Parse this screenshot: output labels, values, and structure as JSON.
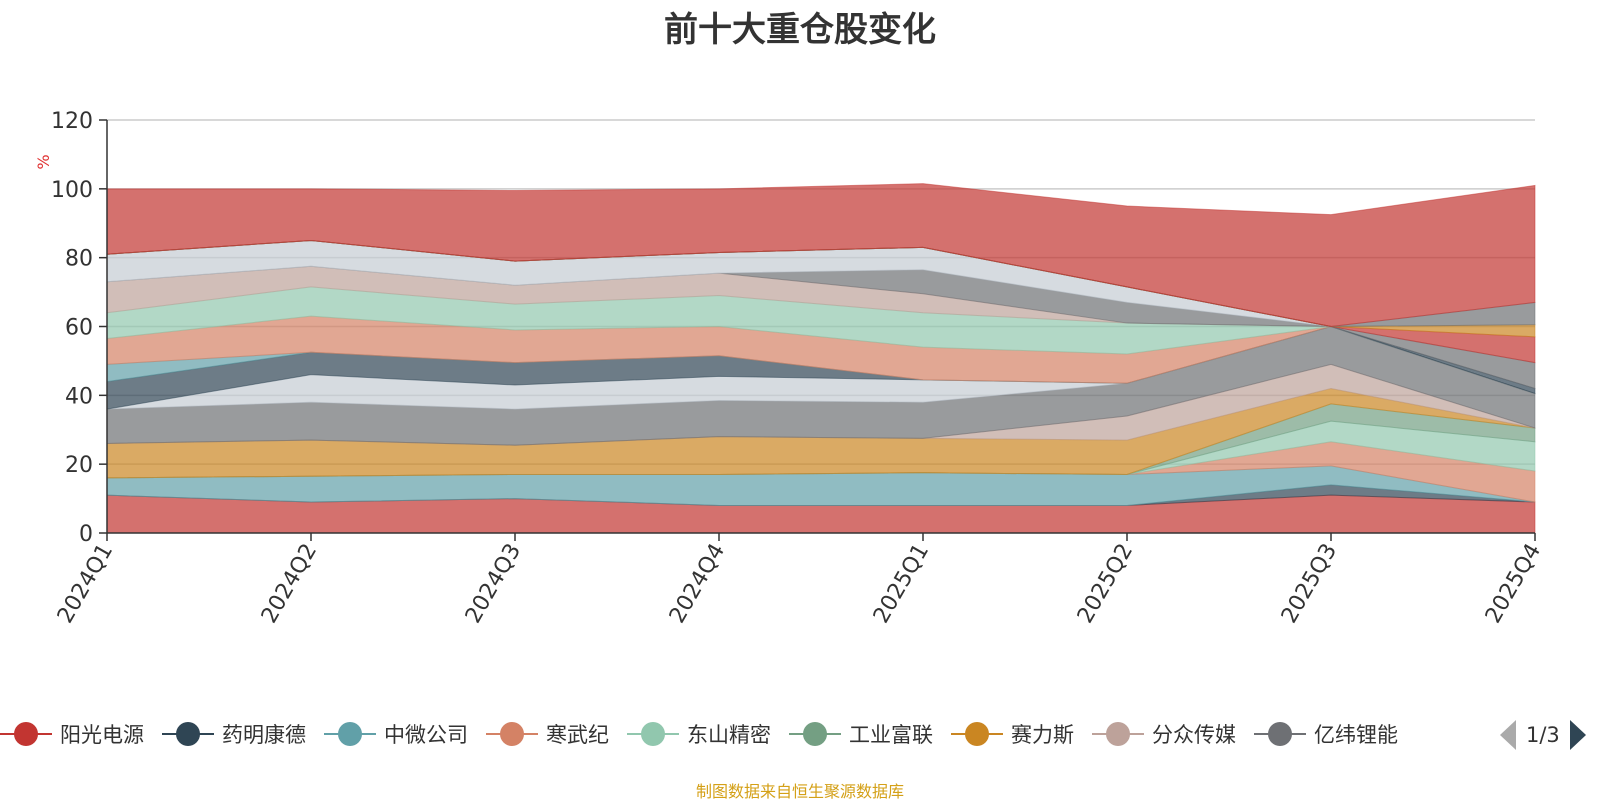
{
  "chart_data": {
    "type": "area",
    "title": "前十大重仓股变化",
    "ylabel": "%",
    "xlabel": "",
    "ylim": [
      0,
      120
    ],
    "yticks": [
      0,
      20,
      40,
      60,
      80,
      100,
      120
    ],
    "categories": [
      "2024Q1",
      "2024Q2",
      "2024Q3",
      "2024Q4",
      "2025Q1",
      "2025Q2",
      "2025Q3",
      "2025Q4"
    ],
    "stacked": true,
    "series": [
      {
        "name": "阳光电源",
        "color": "#c23531",
        "values": [
          11,
          9,
          10,
          8,
          8,
          8,
          11,
          9
        ]
      },
      {
        "name": "药明康德",
        "color": "#2f4554",
        "values": [
          0,
          0,
          0,
          0,
          0,
          0,
          3,
          0
        ]
      },
      {
        "name": "中微公司",
        "color": "#61a0a8",
        "values": [
          5,
          7.5,
          7,
          9,
          9.5,
          9,
          5.5,
          0
        ]
      },
      {
        "name": "寒武纪",
        "color": "#d48265",
        "values": [
          0,
          0,
          0,
          0,
          0,
          0,
          7,
          9
        ]
      },
      {
        "name": "东山精密",
        "color": "#91c7ae",
        "values": [
          0,
          0,
          0,
          0,
          0,
          0,
          6,
          8.5
        ]
      },
      {
        "name": "工业富联",
        "color": "#749f83",
        "values": [
          0,
          0,
          0,
          0,
          0,
          0,
          5,
          4
        ]
      },
      {
        "name": "赛力斯",
        "color": "#ca8622",
        "values": [
          10,
          10.5,
          8.5,
          11,
          10,
          10,
          4.5,
          0
        ]
      },
      {
        "name": "分众传媒",
        "color": "#bda29a",
        "values": [
          0,
          0,
          0,
          0,
          0,
          7,
          7,
          0
        ]
      },
      {
        "name": "亿纬锂能",
        "color": "#6e7074",
        "values": [
          10,
          11,
          10.5,
          10.5,
          10.5,
          9.5,
          11,
          10
        ]
      },
      {
        "name": "",
        "color": "#c4ccd3",
        "values": [
          0,
          8,
          7,
          7,
          6.5,
          0,
          0,
          0
        ]
      },
      {
        "name": "",
        "color": "#2f4554",
        "values": [
          8,
          6.5,
          6.5,
          6,
          0,
          0,
          0,
          0
        ]
      },
      {
        "name": "",
        "color": "#61a0a8",
        "values": [
          5,
          0,
          0,
          0,
          0,
          0,
          0,
          0
        ]
      },
      {
        "name": "",
        "color": "#d48265",
        "values": [
          7.5,
          10.5,
          9.5,
          8.5,
          9.5,
          8.5,
          0,
          0
        ]
      },
      {
        "name": "",
        "color": "#91c7ae",
        "values": [
          7.5,
          8.5,
          7.5,
          9,
          10,
          9,
          0,
          0
        ]
      },
      {
        "name": "",
        "color": "#bda29a",
        "values": [
          9,
          6,
          5.5,
          6.5,
          5.5,
          0,
          0,
          0
        ]
      },
      {
        "name": "",
        "color": "#6e7074",
        "values": [
          0,
          0,
          0,
          0,
          7,
          6,
          0,
          0
        ]
      },
      {
        "name": "",
        "color": "#c4ccd3",
        "values": [
          8,
          7.5,
          7,
          6,
          6.5,
          4.5,
          0,
          0
        ]
      },
      {
        "name": "",
        "color": "#2f4554",
        "values": [
          0,
          0,
          0,
          0,
          0,
          0,
          0,
          1.5
        ]
      },
      {
        "name": "",
        "color": "#6e7074",
        "values": [
          0,
          0,
          0,
          0,
          0,
          0,
          0,
          7.5
        ]
      },
      {
        "name": "",
        "color": "#c23531",
        "values": [
          0,
          0,
          0,
          0,
          0,
          0,
          0,
          7.5
        ]
      },
      {
        "name": "",
        "color": "#91c7ae",
        "values": [
          0,
          0,
          0,
          0,
          0,
          0,
          0,
          0
        ]
      },
      {
        "name": "",
        "color": "#ca8622",
        "values": [
          0,
          0,
          0,
          0,
          0,
          0,
          0,
          3.5
        ]
      },
      {
        "name": "",
        "color": "#6e7074",
        "values": [
          0,
          0,
          0,
          0,
          0,
          0,
          0,
          6.5
        ]
      },
      {
        "name": "",
        "color": "#c23531",
        "values": [
          19,
          15,
          20.5,
          18.5,
          18.5,
          23.5,
          32.5,
          34
        ]
      }
    ]
  },
  "legend": {
    "items": [
      {
        "label": "阳光电源",
        "color": "#c23531"
      },
      {
        "label": "药明康德",
        "color": "#2f4554"
      },
      {
        "label": "中微公司",
        "color": "#61a0a8"
      },
      {
        "label": "寒武纪",
        "color": "#d48265"
      },
      {
        "label": "东山精密",
        "color": "#91c7ae"
      },
      {
        "label": "工业富联",
        "color": "#749f83"
      },
      {
        "label": "赛力斯",
        "color": "#ca8622"
      },
      {
        "label": "分众传媒",
        "color": "#bda29a"
      },
      {
        "label": "亿纬锂能",
        "color": "#6e7074"
      }
    ],
    "page": "1/3"
  },
  "source": "制图数据来自恒生聚源数据库"
}
